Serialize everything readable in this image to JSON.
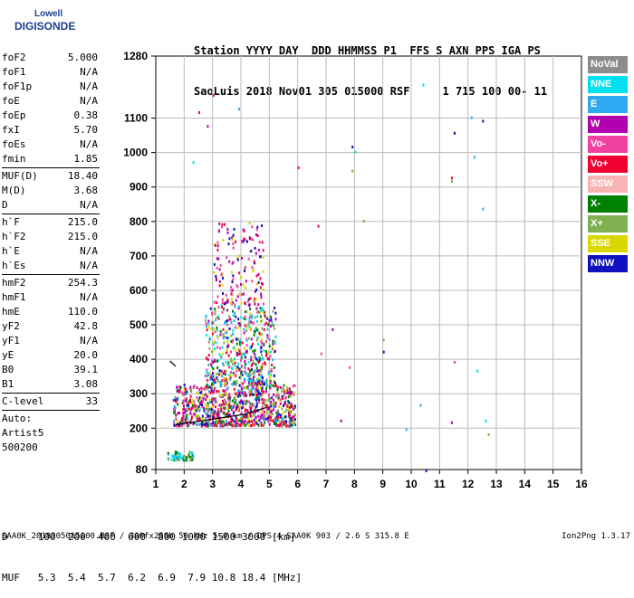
{
  "logo": {
    "line1": "Lowell",
    "line2": "DIGISONDE"
  },
  "header": {
    "row1": "Station YYYY DAY  DDD HHMMSS P1  FFS S AXN PPS IGA PS",
    "row2": "SaoLuis 2018 Nov01 305 015000 RSF     1 715 100 00- 11"
  },
  "params": [
    {
      "k": "foF2",
      "v": "5.000"
    },
    {
      "k": "foF1",
      "v": "N/A"
    },
    {
      "k": "foF1p",
      "v": "N/A"
    },
    {
      "k": "foE",
      "v": "N/A"
    },
    {
      "k": "foEp",
      "v": "0.38"
    },
    {
      "k": "fxI",
      "v": "5.70"
    },
    {
      "k": "foEs",
      "v": "N/A"
    },
    {
      "k": "fmin",
      "v": "1.85"
    },
    {
      "k": "MUF(D)",
      "v": "18.40"
    },
    {
      "k": "M(D)",
      "v": "3.68"
    },
    {
      "k": "D",
      "v": "N/A"
    },
    {
      "k": "h`F",
      "v": "215.0"
    },
    {
      "k": "h`F2",
      "v": "215.0"
    },
    {
      "k": "h`E",
      "v": "N/A"
    },
    {
      "k": "h`Es",
      "v": "N/A"
    },
    {
      "k": "hmF2",
      "v": "254.3"
    },
    {
      "k": "hmF1",
      "v": "N/A"
    },
    {
      "k": "hmE",
      "v": "110.0"
    },
    {
      "k": "yF2",
      "v": "42.8"
    },
    {
      "k": "yF1",
      "v": "N/A"
    },
    {
      "k": "yE",
      "v": "20.0"
    },
    {
      "k": "B0",
      "v": "39.1"
    },
    {
      "k": "B1",
      "v": "3.08"
    },
    {
      "k": "C-level",
      "v": "33"
    }
  ],
  "autoscale": {
    "l1": "Auto:",
    "l2": "Artist5",
    "l3": "500200"
  },
  "legend": [
    {
      "label": "NoVal",
      "color": "#8c8c8c"
    },
    {
      "label": "NNE",
      "color": "#00e0f0"
    },
    {
      "label": "E",
      "color": "#2ea8f0"
    },
    {
      "label": "W",
      "color": "#b000b0"
    },
    {
      "label": "Vo-",
      "color": "#f040a0"
    },
    {
      "label": "Vo+",
      "color": "#f00030"
    },
    {
      "label": "SSW",
      "color": "#f8b4b4"
    },
    {
      "label": "X-",
      "color": "#008000"
    },
    {
      "label": "X+",
      "color": "#80b050"
    },
    {
      "label": "SSE",
      "color": "#d8d800"
    },
    {
      "label": "NNW",
      "color": "#1010c0"
    }
  ],
  "bottom": {
    "l1": "D     100  200  400  600  800 1000 1500 3000 [km]",
    "l2": "MUF   5.3  5.4  5.7  6.2  6.9  7.9 10.8 18.4 [MHz]"
  },
  "footer": {
    "left": "SAA0K_2018305015000.RSF / 300fx256h 50 kHz 5.0 km / DPS-4 SAA0K 903 / 2.6 S 315.8 E",
    "right": "Ion2Png 1.3.17"
  },
  "chart_data": {
    "type": "scatter",
    "x_ticks": [
      1,
      2,
      3,
      4,
      5,
      6,
      7,
      8,
      9,
      10,
      11,
      12,
      13,
      14,
      15,
      16
    ],
    "y_ticks": [
      80,
      200,
      300,
      400,
      500,
      600,
      700,
      800,
      900,
      1000,
      1100,
      1280
    ],
    "xlim": [
      1,
      16
    ],
    "ylim": [
      80,
      1280
    ],
    "grid": true,
    "clusters": [
      {
        "x0": 1.6,
        "x1": 5.9,
        "y0": 210,
        "y1": 330,
        "n": 900,
        "colors": [
          "#f00030",
          "#f00030",
          "#f040a0",
          "#b000b0",
          "#d8d800",
          "#80b050",
          "#2ea8f0",
          "#1010c0",
          "#008000"
        ]
      },
      {
        "x0": 2.7,
        "x1": 5.2,
        "y0": 330,
        "y1": 560,
        "n": 520,
        "colors": [
          "#f00030",
          "#f040a0",
          "#b000b0",
          "#d8d800",
          "#80b050",
          "#2ea8f0",
          "#1010c0",
          "#008000",
          "#00e0f0"
        ]
      },
      {
        "x0": 3.0,
        "x1": 4.8,
        "y0": 560,
        "y1": 800,
        "n": 160,
        "colors": [
          "#b000b0",
          "#f040a0",
          "#d8d800",
          "#1010c0",
          "#f00030"
        ]
      },
      {
        "x0": 1.4,
        "x1": 2.3,
        "y0": 110,
        "y1": 135,
        "n": 60,
        "colors": [
          "#2ea8f0",
          "#00e0f0",
          "#008000",
          "#80b050"
        ]
      }
    ],
    "traces": [
      {
        "name": "trace",
        "points": [
          [
            1.7,
            210
          ],
          [
            2.5,
            220
          ],
          [
            3.3,
            230
          ],
          [
            4.1,
            240
          ],
          [
            4.9,
            260
          ]
        ]
      },
      {
        "name": "trace2",
        "points": [
          [
            1.5,
            395
          ],
          [
            1.7,
            380
          ]
        ]
      }
    ],
    "outliers": [
      [
        10.4,
        1200
      ],
      [
        11.5,
        1060
      ],
      [
        12.1,
        1105
      ],
      [
        12.5,
        1095
      ],
      [
        12.2,
        990
      ],
      [
        11.4,
        930
      ],
      [
        11.4,
        920
      ],
      [
        12.5,
        840
      ],
      [
        2.5,
        1120
      ],
      [
        2.8,
        1080
      ],
      [
        3.9,
        1130
      ],
      [
        3.0,
        1170
      ],
      [
        2.3,
        975
      ],
      [
        6.0,
        960
      ],
      [
        6.7,
        790
      ],
      [
        7.9,
        1020
      ],
      [
        8.0,
        1005
      ],
      [
        7.9,
        950
      ],
      [
        8.3,
        805
      ],
      [
        9.0,
        460
      ],
      [
        9.0,
        425
      ],
      [
        7.8,
        380
      ],
      [
        7.2,
        490
      ],
      [
        6.8,
        420
      ],
      [
        11.5,
        395
      ],
      [
        12.3,
        370
      ],
      [
        10.3,
        270
      ],
      [
        11.4,
        220
      ],
      [
        12.6,
        225
      ],
      [
        12.7,
        185
      ],
      [
        7.5,
        225
      ],
      [
        9.8,
        200
      ],
      [
        10.5,
        80
      ]
    ]
  }
}
